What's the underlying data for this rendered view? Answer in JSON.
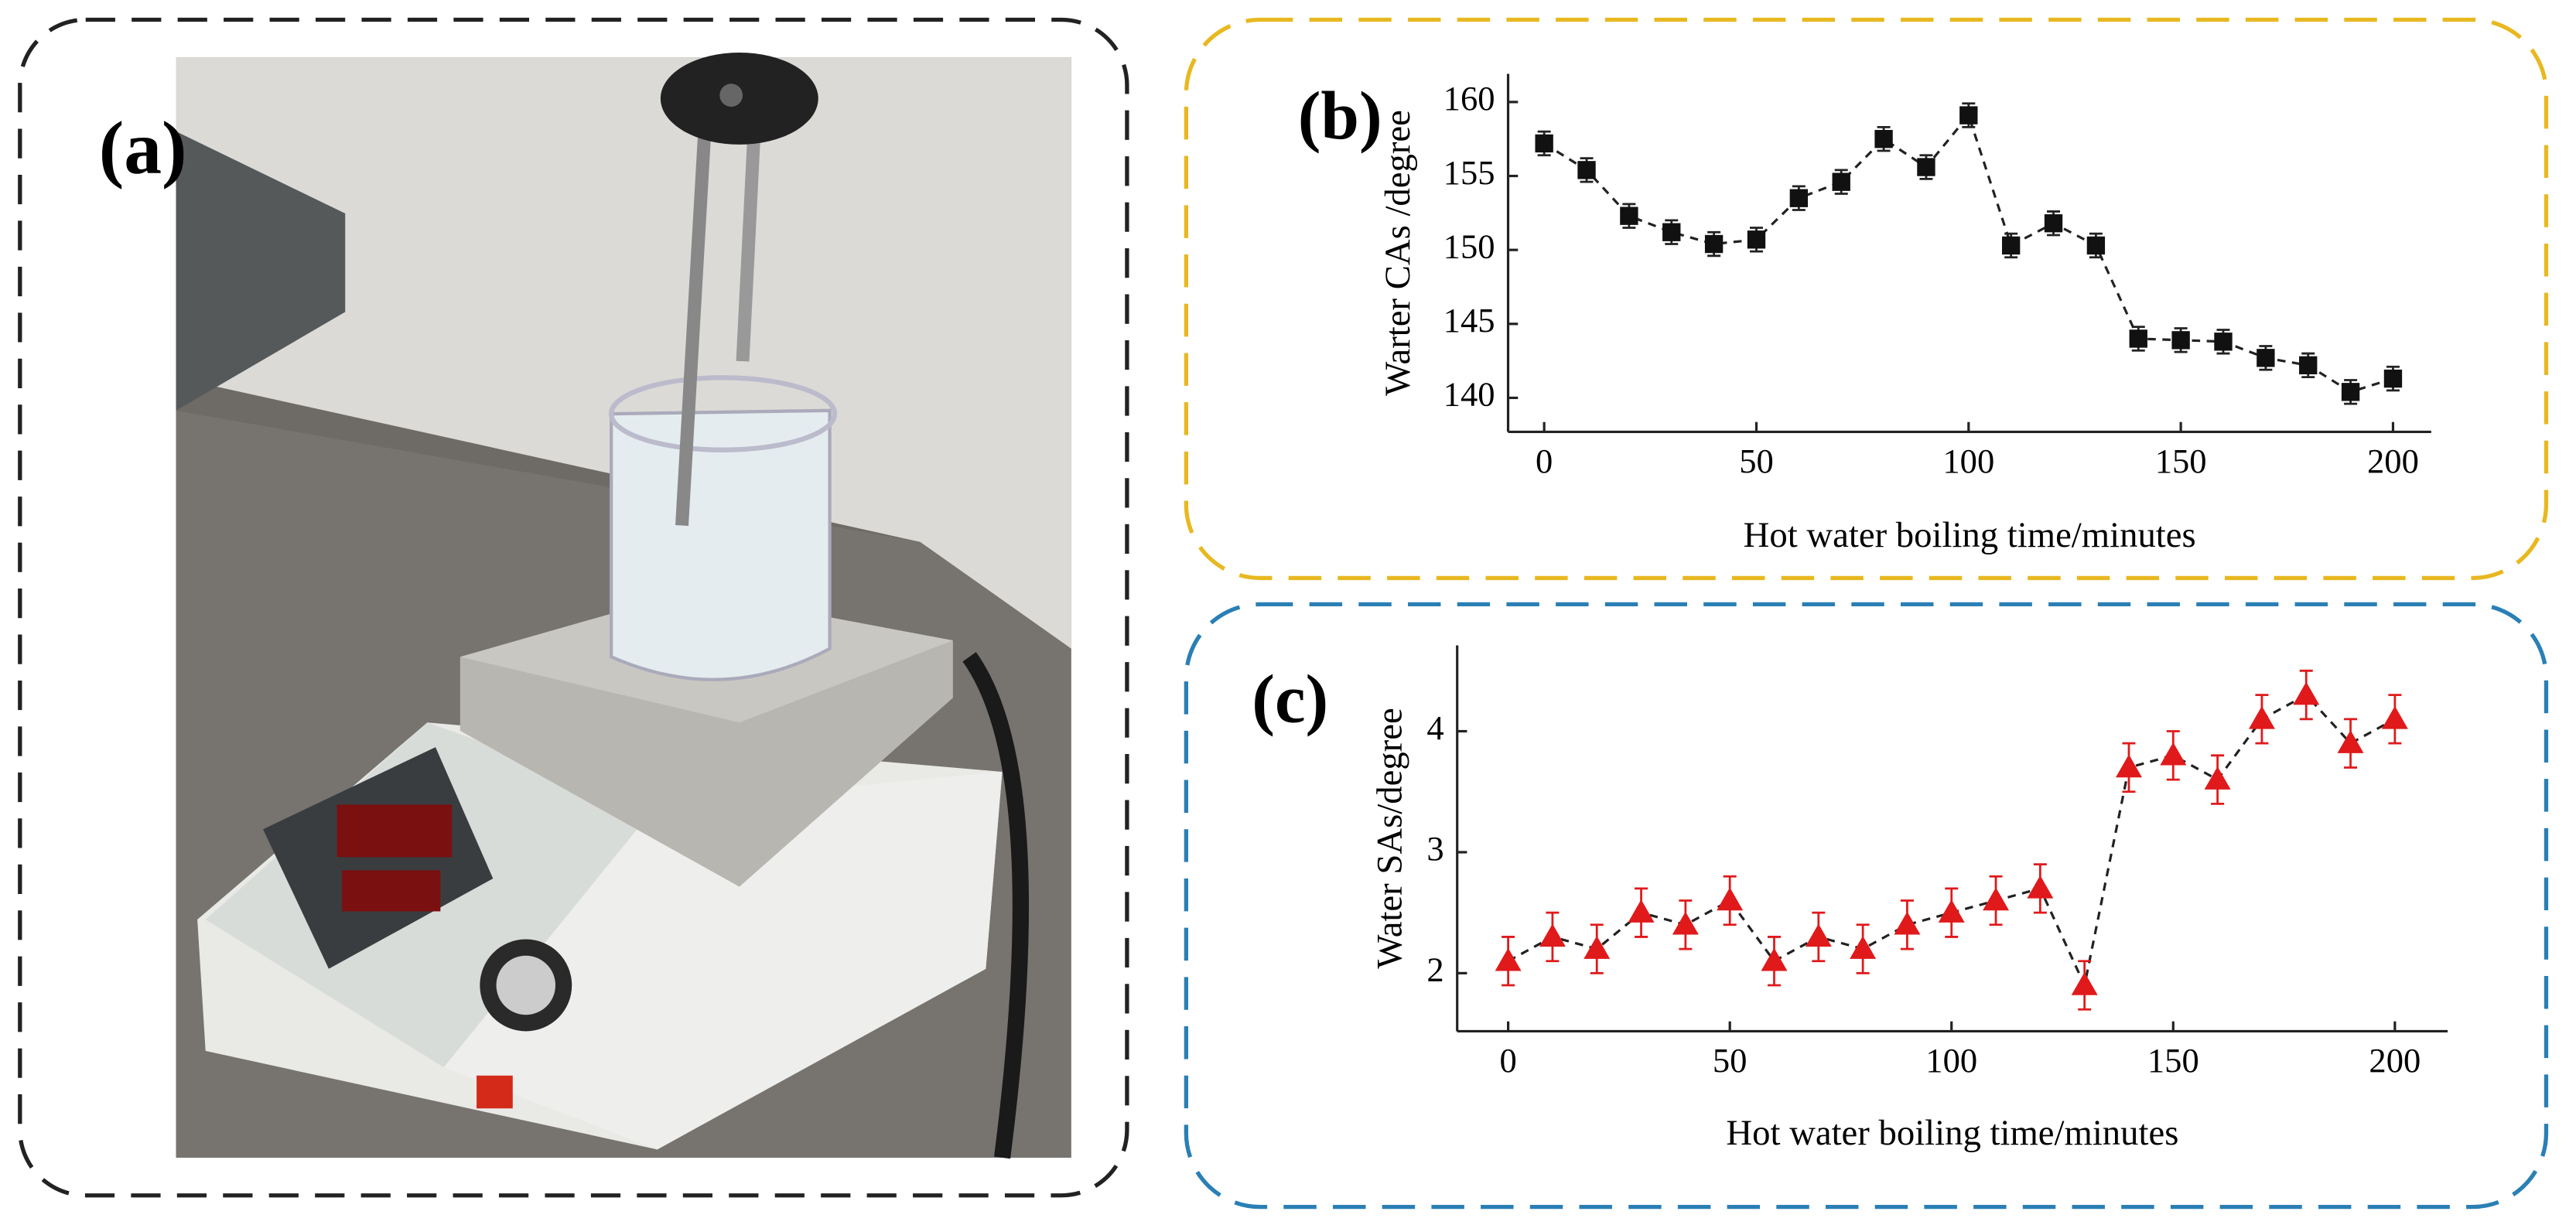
{
  "photo_label": "(a)",
  "chart_data": [
    {
      "type": "scatter-line",
      "annotation": "(b)",
      "y_label": "Warter CAs /degree",
      "x_label": "Hot water boiling time/minutes",
      "x": [
        0,
        10,
        20,
        30,
        40,
        50,
        60,
        70,
        80,
        90,
        100,
        110,
        120,
        130,
        140,
        150,
        160,
        170,
        180,
        190,
        200
      ],
      "values": [
        157.2,
        155.4,
        152.3,
        151.2,
        150.4,
        150.7,
        153.5,
        154.6,
        157.5,
        155.6,
        159.1,
        150.3,
        151.8,
        150.3,
        144.0,
        143.9,
        143.8,
        142.7,
        142.2,
        140.4,
        141.3
      ],
      "errors": [
        0.8,
        0.8,
        0.8,
        0.8,
        0.8,
        0.8,
        0.8,
        0.8,
        0.8,
        0.8,
        0.8,
        0.8,
        0.8,
        0.8,
        0.8,
        0.8,
        0.8,
        0.8,
        0.8,
        0.8,
        0.8
      ],
      "color": "#111111",
      "marker": "square",
      "xlim": [
        -8.5,
        209
      ],
      "ylim": [
        137.7,
        161.9
      ],
      "xticks": [
        0,
        50,
        100,
        150,
        200
      ],
      "yticks": [
        140,
        145,
        150,
        155,
        160
      ]
    },
    {
      "type": "scatter-line",
      "annotation": "(c)",
      "y_label": "Water SAs/degree",
      "x_label": "Hot water boiling time/minutes",
      "x": [
        0,
        10,
        20,
        30,
        40,
        50,
        60,
        70,
        80,
        90,
        100,
        110,
        120,
        130,
        140,
        150,
        160,
        170,
        180,
        190,
        200
      ],
      "values": [
        2.1,
        2.3,
        2.2,
        2.5,
        2.4,
        2.6,
        2.1,
        2.3,
        2.2,
        2.4,
        2.5,
        2.6,
        2.7,
        1.9,
        3.7,
        3.8,
        3.6,
        4.1,
        4.3,
        3.9,
        4.1
      ],
      "errors": [
        0.2,
        0.2,
        0.2,
        0.2,
        0.2,
        0.2,
        0.2,
        0.2,
        0.2,
        0.2,
        0.2,
        0.2,
        0.2,
        0.2,
        0.2,
        0.2,
        0.2,
        0.2,
        0.2,
        0.2,
        0.2
      ],
      "color": "#e0191b",
      "marker": "triangle",
      "xlim": [
        -11.5,
        211.9
      ],
      "ylim": [
        1.52,
        4.71
      ],
      "xticks": [
        0,
        50,
        100,
        150,
        200
      ],
      "yticks": [
        2,
        3,
        4
      ]
    }
  ]
}
